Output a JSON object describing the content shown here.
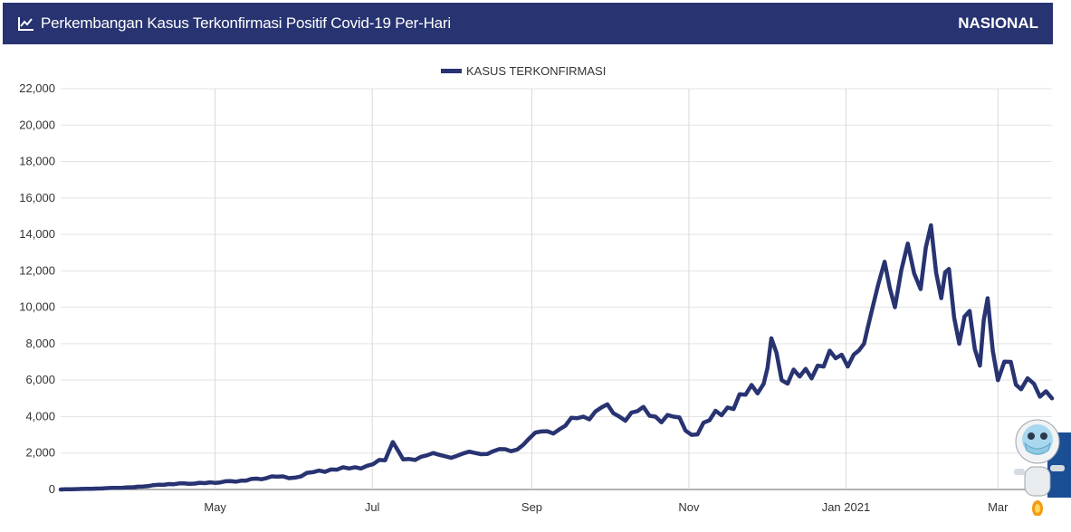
{
  "header": {
    "title": "Perkembangan Kasus Terkonfirmasi Positif Covid-19 Per-Hari",
    "scope": "NASIONAL",
    "icon": "line-chart-icon",
    "background_color": "#283371"
  },
  "mascot": {
    "icon": "masked-robot-mascot-icon"
  },
  "chart_data": {
    "type": "line",
    "title": "",
    "xlabel": "",
    "ylabel": "",
    "legend_position": "top-center",
    "grid": true,
    "ylim": [
      0,
      22000
    ],
    "yticks": [
      0,
      2000,
      4000,
      6000,
      8000,
      10000,
      12000,
      14000,
      16000,
      18000,
      20000,
      22000
    ],
    "ytick_labels": [
      "0",
      "2,000",
      "4,000",
      "6,000",
      "8,000",
      "10,000",
      "12,000",
      "14,000",
      "16,000",
      "18,000",
      "20,000",
      "22,000"
    ],
    "xlim": [
      "2020-03-02",
      "2021-03-22"
    ],
    "xticks": [
      "2020-05-01",
      "2020-07-01",
      "2020-09-01",
      "2020-11-01",
      "2021-01-01",
      "2021-03-01"
    ],
    "xtick_labels": [
      "May",
      "Jul",
      "Sep",
      "Nov",
      "Jan 2021",
      "Mar"
    ],
    "series": [
      {
        "name": "KASUS TERKONFIRMASI",
        "color": "#283371",
        "x": [
          "2020-03-02",
          "2020-03-16",
          "2020-03-30",
          "2020-04-13",
          "2020-04-27",
          "2020-05-11",
          "2020-05-25",
          "2020-06-01",
          "2020-06-08",
          "2020-06-15",
          "2020-06-22",
          "2020-06-29",
          "2020-07-06",
          "2020-07-09",
          "2020-07-13",
          "2020-07-20",
          "2020-07-27",
          "2020-08-03",
          "2020-08-10",
          "2020-08-17",
          "2020-08-24",
          "2020-08-31",
          "2020-09-07",
          "2020-09-14",
          "2020-09-21",
          "2020-09-28",
          "2020-10-05",
          "2020-10-12",
          "2020-10-19",
          "2020-10-26",
          "2020-11-02",
          "2020-11-09",
          "2020-11-16",
          "2020-11-23",
          "2020-11-30",
          "2020-12-03",
          "2020-12-07",
          "2020-12-14",
          "2020-12-21",
          "2020-12-28",
          "2021-01-04",
          "2021-01-08",
          "2021-01-11",
          "2021-01-16",
          "2021-01-20",
          "2021-01-25",
          "2021-01-30",
          "2021-02-03",
          "2021-02-07",
          "2021-02-10",
          "2021-02-14",
          "2021-02-18",
          "2021-02-22",
          "2021-02-25",
          "2021-03-01",
          "2021-03-06",
          "2021-03-10",
          "2021-03-15",
          "2021-03-22"
        ],
        "values": [
          0,
          50,
          120,
          300,
          350,
          480,
          700,
          650,
          950,
          1100,
          1150,
          1300,
          1600,
          2600,
          1650,
          1800,
          1900,
          1850,
          2000,
          2100,
          2100,
          2800,
          3200,
          3500,
          4000,
          4500,
          4000,
          4300,
          4000,
          4000,
          3000,
          3800,
          4500,
          5200,
          5800,
          8300,
          6000,
          6200,
          6800,
          7200,
          7400,
          8000,
          9800,
          12500,
          10000,
          13500,
          11000,
          14500,
          10500,
          12100,
          8000,
          9800,
          6800,
          10500,
          6000,
          7000,
          5500,
          5800,
          5000
        ]
      }
    ]
  }
}
